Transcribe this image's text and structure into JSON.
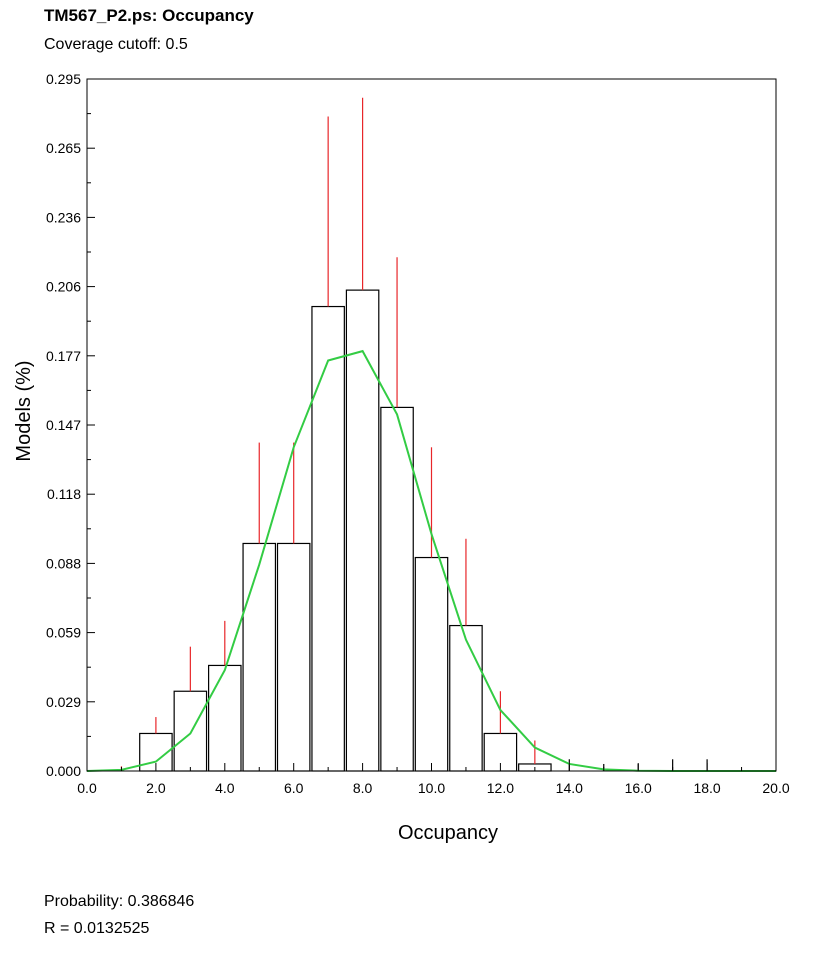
{
  "header": {
    "title": "TM567_P2.ps: Occupancy",
    "subtitle": "Coverage cutoff: 0.5"
  },
  "footer": {
    "probability": "Probability:  0.386846",
    "r_value": "R = 0.0132525"
  },
  "chart_data": {
    "type": "bar",
    "title": "TM567_P2.ps: Occupancy",
    "subtitle": "Coverage cutoff: 0.5",
    "xlabel": "Occupancy",
    "ylabel": "Models (%)",
    "xlim": [
      0,
      20
    ],
    "ylim": [
      0,
      0.295
    ],
    "x_ticks": [
      "0.0",
      "2.0",
      "4.0",
      "6.0",
      "8.0",
      "10.0",
      "12.0",
      "14.0",
      "16.0",
      "18.0",
      "20.0"
    ],
    "y_ticks": [
      "0.000",
      "0.029",
      "0.059",
      "0.088",
      "0.118",
      "0.147",
      "0.177",
      "0.206",
      "0.236",
      "0.265",
      "0.295"
    ],
    "grid": false,
    "bars": {
      "x": [
        1,
        2,
        3,
        4,
        5,
        6,
        7,
        8,
        9,
        10,
        11,
        12,
        13,
        14,
        15,
        16,
        17,
        18,
        19
      ],
      "values": [
        0.0,
        0.016,
        0.034,
        0.045,
        0.097,
        0.097,
        0.198,
        0.205,
        0.155,
        0.091,
        0.062,
        0.016,
        0.003,
        0.0,
        0.0,
        0.0,
        0.0,
        0.0,
        0.0
      ],
      "error": [
        0.002,
        0.023,
        0.053,
        0.064,
        0.14,
        0.14,
        0.279,
        0.287,
        0.219,
        0.138,
        0.099,
        0.034,
        0.013,
        0.005,
        0.003,
        0.003,
        0.005,
        0.005,
        0.0
      ],
      "bar_color": "#ffffff",
      "edge_color": "#000000",
      "error_color": "#e8262a"
    },
    "series": [
      {
        "type": "line",
        "color": "#33cc44",
        "x": [
          0,
          1,
          2,
          3,
          4,
          5,
          6,
          7,
          8,
          9,
          10,
          11,
          12,
          13,
          14,
          15,
          16,
          17,
          18,
          19,
          20
        ],
        "values": [
          0.0,
          0.0005,
          0.004,
          0.016,
          0.043,
          0.088,
          0.138,
          0.175,
          0.179,
          0.152,
          0.101,
          0.056,
          0.026,
          0.01,
          0.003,
          0.0007,
          0.0001,
          0.0,
          0.0,
          0.0,
          0.0
        ]
      }
    ]
  }
}
